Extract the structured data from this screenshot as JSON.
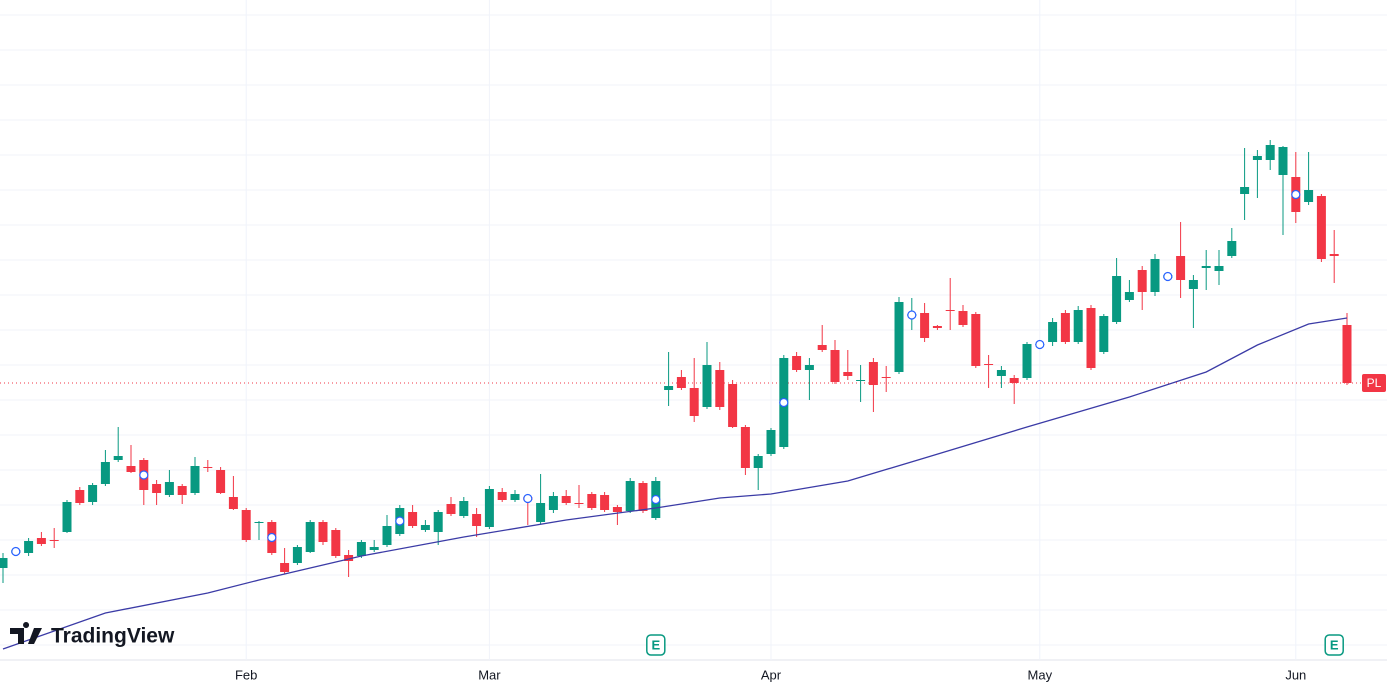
{
  "chart_data": {
    "type": "candlestick",
    "logo_text": "TradingView",
    "categories": [
      null,
      null,
      null,
      null,
      null,
      null,
      null,
      null,
      null,
      null,
      null,
      null,
      null,
      null,
      null,
      null,
      null,
      null,
      null,
      "Feb",
      null,
      null,
      null,
      null,
      null,
      null,
      null,
      null,
      null,
      null,
      null,
      null,
      null,
      null,
      null,
      null,
      null,
      null,
      "Mar",
      null,
      null,
      null,
      null,
      null,
      null,
      null,
      null,
      null,
      null,
      null,
      null,
      null,
      null,
      null,
      null,
      null,
      null,
      null,
      null,
      null,
      "Apr",
      null,
      null,
      null,
      null,
      null,
      null,
      null,
      null,
      null,
      null,
      null,
      null,
      null,
      null,
      null,
      null,
      null,
      null,
      null,
      null,
      "May",
      null,
      null,
      null,
      null,
      null,
      null,
      null,
      null,
      null,
      null,
      null,
      null,
      null,
      null,
      null,
      null,
      null,
      null,
      null,
      "Jun",
      null,
      null,
      null,
      null
    ],
    "open": [
      92,
      107,
      107,
      122,
      120,
      128,
      170,
      158,
      176,
      200,
      194,
      200,
      176,
      165,
      174,
      167,
      193,
      190,
      163,
      150,
      138,
      138,
      97,
      97,
      108,
      138,
      130,
      105,
      104,
      110,
      115,
      126,
      148,
      130,
      128,
      156,
      144,
      146,
      133,
      168,
      160,
      163,
      138,
      150,
      164,
      157,
      166,
      165,
      153,
      149,
      177,
      142,
      270,
      283,
      272,
      253,
      290,
      276,
      233,
      192,
      206,
      213,
      304,
      290,
      315,
      310,
      288,
      279,
      298,
      283,
      288,
      344,
      347,
      334,
      350,
      349,
      346,
      296,
      284,
      282,
      282,
      315,
      318,
      347,
      318,
      352,
      308,
      338,
      360,
      390,
      368,
      382,
      404,
      371,
      392,
      389,
      404,
      466,
      500,
      500,
      485,
      483,
      458,
      464,
      406,
      335
    ],
    "high": [
      107,
      112,
      122,
      128,
      132,
      160,
      173,
      177,
      210,
      233,
      215,
      202,
      180,
      190,
      176,
      203,
      200,
      193,
      184,
      152,
      139,
      140,
      112,
      115,
      140,
      140,
      132,
      110,
      120,
      120,
      145,
      155,
      155,
      140,
      150,
      163,
      163,
      152,
      174,
      172,
      170,
      165,
      186,
      168,
      170,
      175,
      168,
      168,
      155,
      182,
      179,
      183,
      308,
      290,
      302,
      318,
      298,
      280,
      235,
      206,
      232,
      305,
      308,
      302,
      335,
      320,
      310,
      295,
      302,
      294,
      363,
      362,
      357,
      335,
      382,
      355,
      348,
      305,
      294,
      285,
      318,
      317,
      342,
      350,
      354,
      355,
      346,
      402,
      380,
      394,
      406,
      387,
      438,
      385,
      410,
      410,
      432,
      512,
      510,
      520,
      514,
      508,
      508,
      466,
      430,
      347
    ],
    "low": [
      77,
      104,
      104,
      114,
      112,
      127,
      155,
      155,
      174,
      198,
      187,
      155,
      155,
      163,
      156,
      165,
      188,
      166,
      150,
      118,
      120,
      105,
      86,
      95,
      107,
      115,
      102,
      83,
      102,
      108,
      113,
      124,
      132,
      128,
      115,
      144,
      142,
      123,
      131,
      158,
      158,
      135,
      136,
      147,
      155,
      152,
      150,
      148,
      135,
      147,
      147,
      140,
      254,
      270,
      238,
      251,
      250,
      232,
      185,
      170,
      204,
      211,
      288,
      260,
      308,
      276,
      280,
      258,
      248,
      268,
      286,
      330,
      318,
      330,
      330,
      333,
      292,
      272,
      272,
      256,
      280,
      314,
      314,
      316,
      316,
      290,
      306,
      336,
      358,
      350,
      364,
      381,
      362,
      332,
      370,
      375,
      402,
      440,
      462,
      490,
      425,
      437,
      455,
      398,
      377,
      275
    ],
    "close": [
      102,
      110,
      119,
      116,
      119,
      158,
      157,
      175,
      198,
      204,
      188,
      170,
      167,
      178,
      165,
      194,
      192,
      167,
      151,
      120,
      138,
      107,
      88,
      113,
      138,
      118,
      104,
      99,
      118,
      113,
      134,
      152,
      134,
      135,
      148,
      146,
      159,
      134,
      171,
      160,
      166,
      160,
      157,
      164,
      157,
      156,
      152,
      150,
      148,
      179,
      149,
      179,
      274,
      272,
      244,
      295,
      253,
      233,
      192,
      204,
      230,
      302,
      290,
      295,
      310,
      278,
      284,
      280,
      275,
      282,
      358,
      346,
      322,
      332,
      349,
      335,
      294,
      295,
      290,
      277,
      316,
      316,
      338,
      318,
      350,
      292,
      344,
      384,
      368,
      368,
      401,
      385,
      380,
      380,
      394,
      394,
      419,
      473,
      504,
      515,
      513,
      448,
      470,
      401,
      404,
      277
    ],
    "up_color": "#089981",
    "down_color": "#f23645",
    "ma": {
      "color": "#3b3ba6",
      "x": [
        0,
        8,
        16,
        20,
        28,
        36,
        44,
        51,
        56,
        60,
        66,
        72,
        80,
        88,
        94,
        98,
        102,
        105
      ],
      "values": [
        11,
        47,
        67,
        80,
        104,
        123,
        140,
        152,
        162,
        166,
        179,
        202,
        233,
        263,
        288,
        315,
        336,
        342
      ]
    },
    "price_label": {
      "text": "PL",
      "value": 277,
      "color": "#f23645"
    },
    "markers": [
      1,
      11,
      21,
      31,
      41,
      51,
      61,
      71,
      81,
      91,
      101
    ],
    "marker_color": "#2962ff",
    "earnings": [
      {
        "index": 51,
        "label": "E"
      },
      {
        "index": 104,
        "label": "E"
      }
    ],
    "earnings_color": "#089981",
    "ylim": [
      0,
      660
    ],
    "yticks": [
      15,
      50,
      85,
      120,
      155,
      190,
      225,
      260,
      295,
      330,
      365,
      400,
      435,
      470,
      505,
      540,
      575,
      610,
      645
    ],
    "grid": true
  }
}
